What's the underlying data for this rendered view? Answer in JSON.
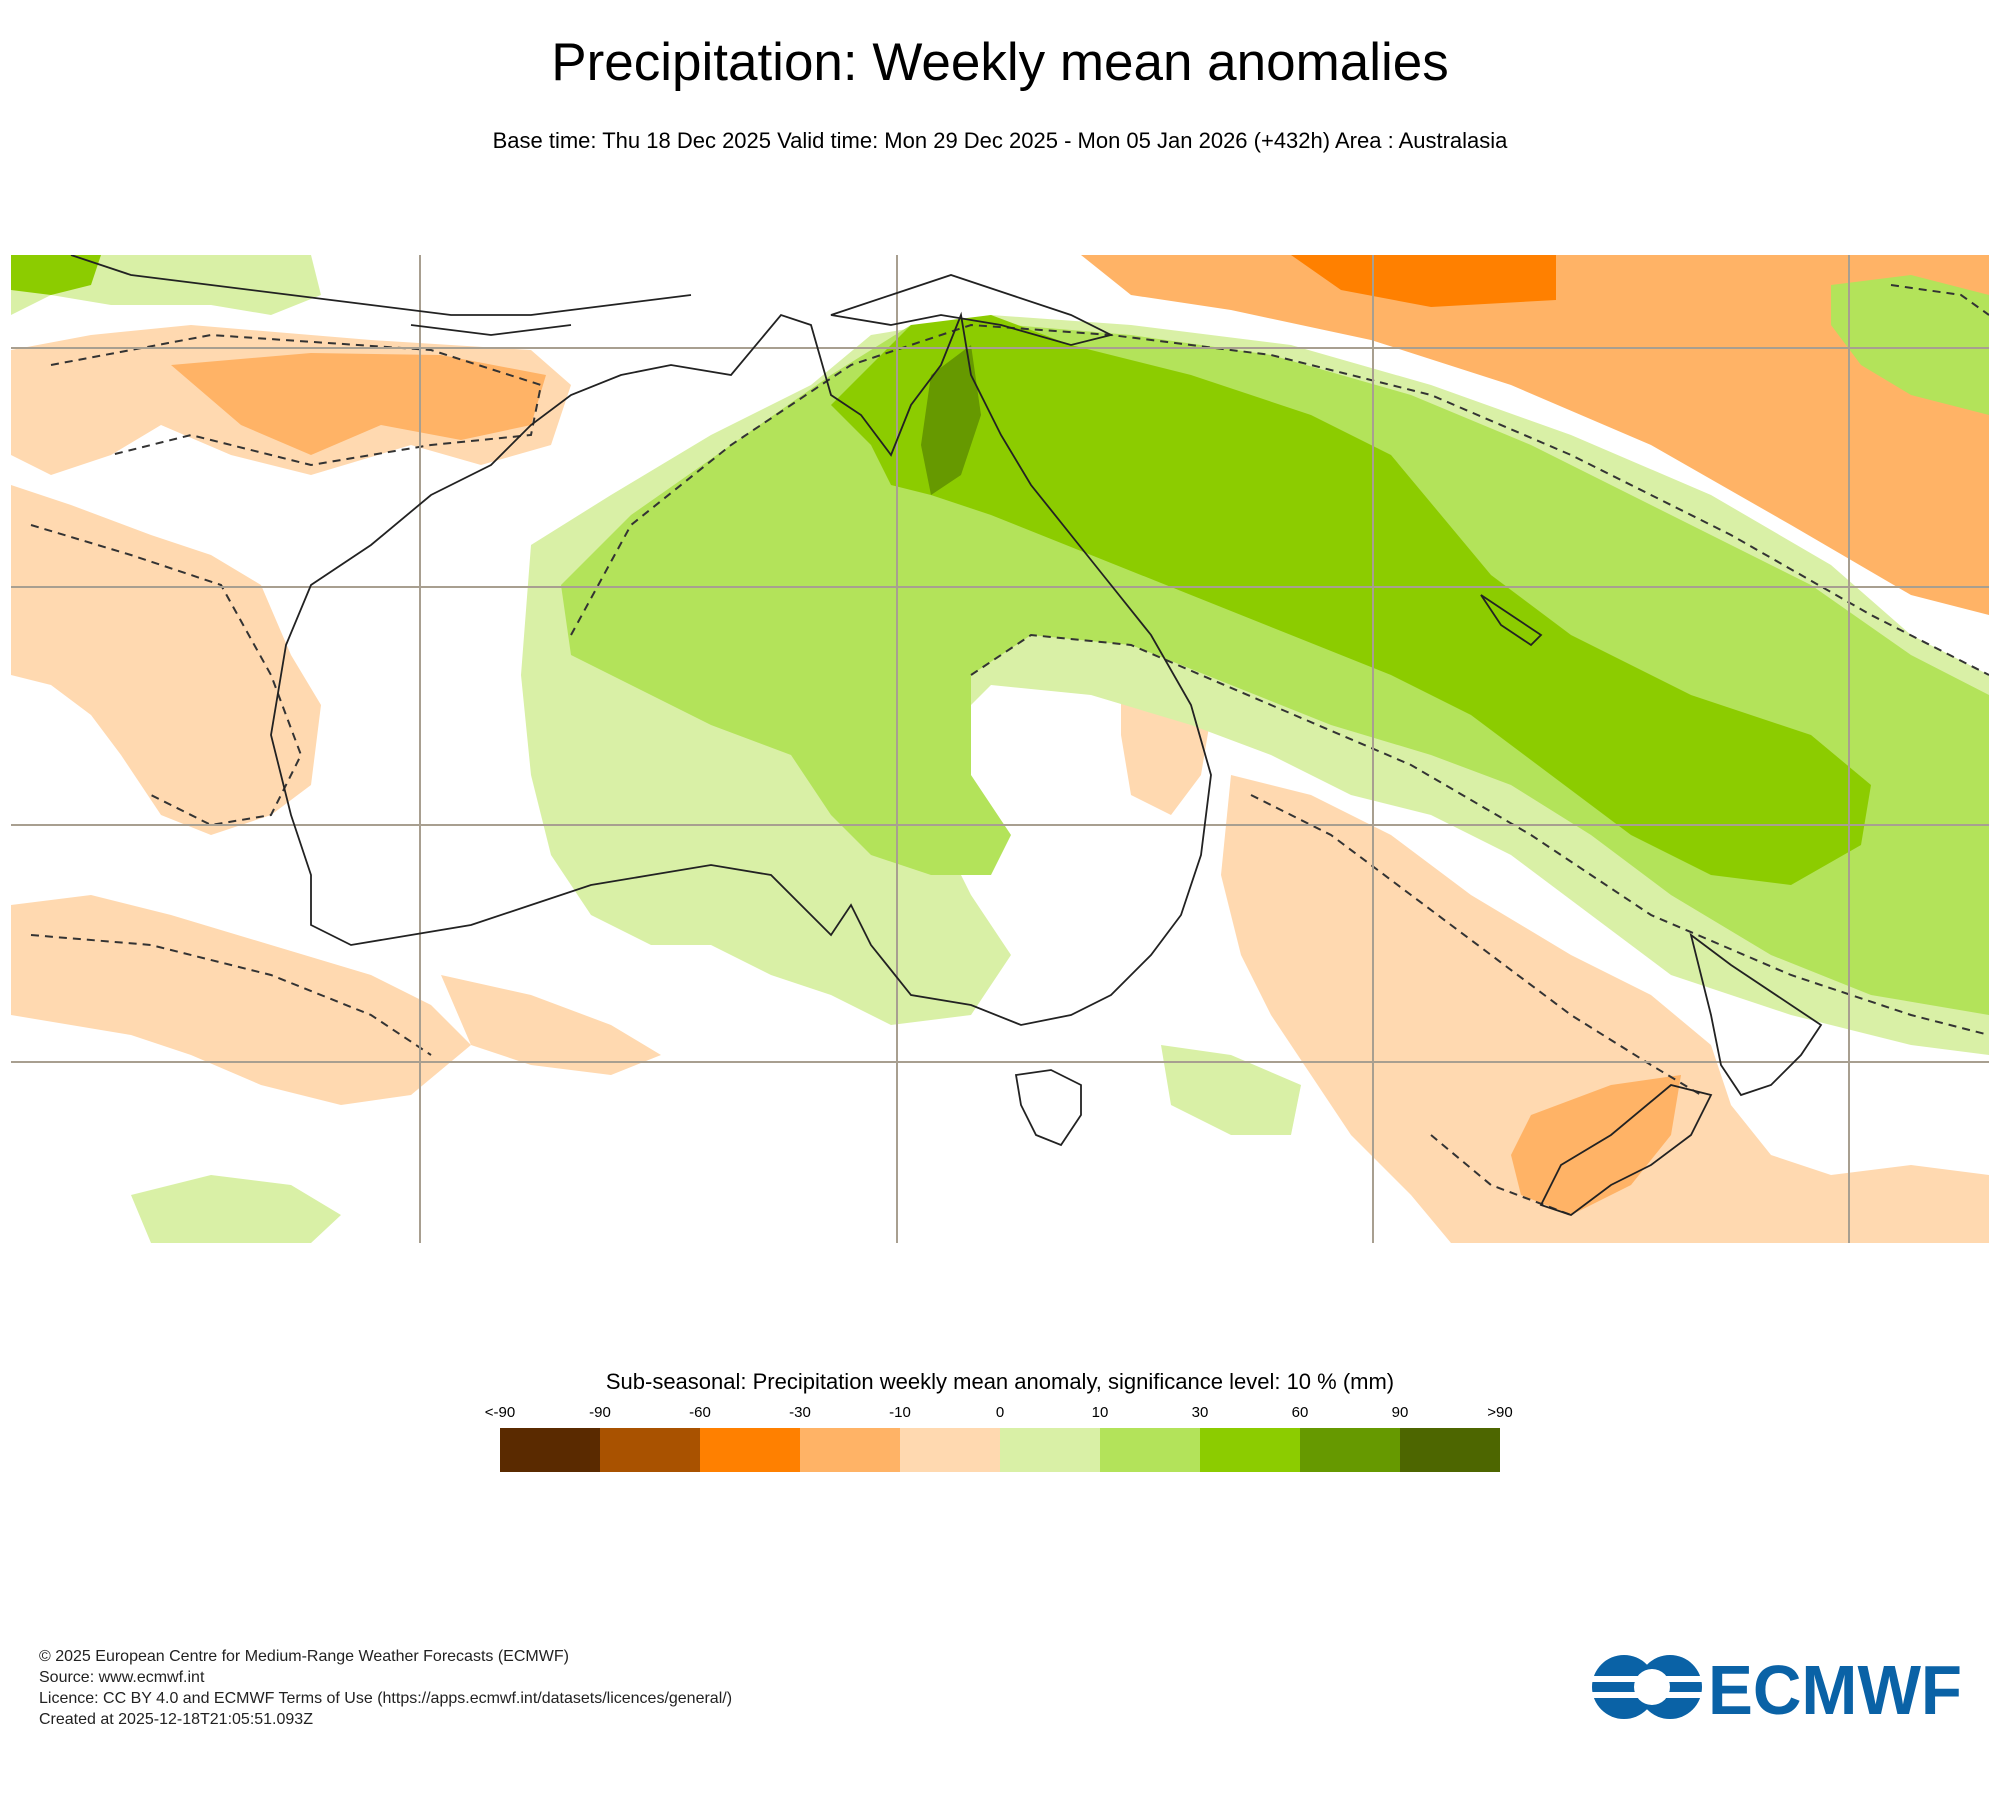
{
  "title": "Precipitation: Weekly mean anomalies",
  "subtitle": "Base time: Thu 18 Dec 2025 Valid time: Mon 29 Dec 2025 - Mon 05 Jan 2026 (+432h) Area : Australasia",
  "map": {
    "area": "Australasia",
    "significance_contour": "dashed"
  },
  "legend": {
    "title": "Sub-seasonal: Precipitation weekly mean anomaly, significance level: 10 % (mm)",
    "ticks": [
      "<-90",
      "-90",
      "-60",
      "-30",
      "-10",
      "0",
      "10",
      "30",
      "60",
      "90",
      ">90"
    ],
    "colors": [
      "#5a2a00",
      "#a95200",
      "#ff8000",
      "#ffb366",
      "#ffd9b0",
      "#d9f0a6",
      "#b3e35a",
      "#8ccc00",
      "#669900",
      "#4d6600"
    ]
  },
  "footer": {
    "copyright": "© 2025 European Centre for Medium-Range Weather Forecasts (ECMWF)",
    "source": "Source: www.ecmwf.int",
    "licence": "Licence: CC BY 4.0 and ECMWF Terms of Use (https://apps.ecmwf.int/datasets/licences/general/)",
    "created": "Created at 2025-12-18T21:05:51.093Z"
  },
  "logo": {
    "text": "ECMWF",
    "color": "#0a62a6"
  }
}
